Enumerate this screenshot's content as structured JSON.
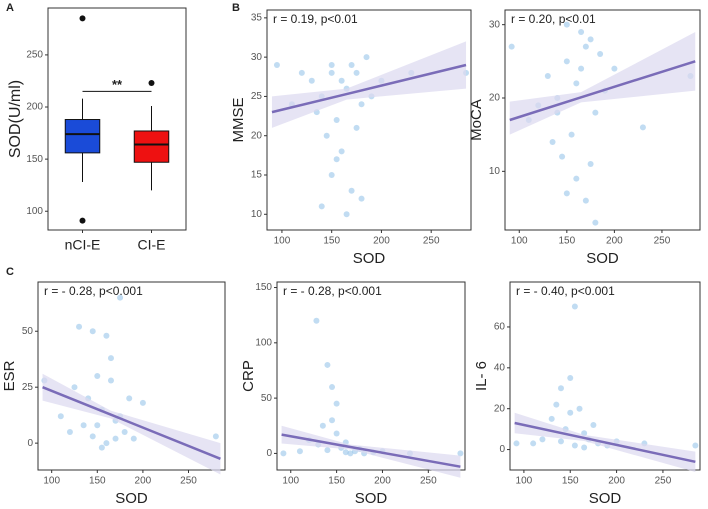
{
  "panel_labels": [
    "A",
    "B",
    "C"
  ],
  "chart_data": [
    {
      "type": "box",
      "ylabel": "SOD(U/ml)",
      "categories": [
        "nCI-E",
        "CI-E"
      ],
      "colors": [
        "#1a4bd8",
        "#ee1111"
      ],
      "boxes": [
        {
          "whisker_low": 128,
          "q1": 156,
          "median": 174,
          "q3": 188,
          "whisker_high": 208,
          "outliers": [
            285,
            91
          ]
        },
        {
          "whisker_low": 120,
          "q1": 147,
          "median": 164,
          "q3": 177,
          "whisker_high": 201,
          "outliers": [
            223
          ]
        }
      ],
      "ylim": [
        82,
        295
      ],
      "yticks": [
        100,
        150,
        200,
        250
      ],
      "annotation": "**",
      "annotation_y": 215
    },
    {
      "type": "scatter",
      "annotation": "r = 0.19, p<0.01",
      "xlabel": "SOD",
      "ylabel": "MMSE",
      "xlim": [
        85,
        290
      ],
      "xticks": [
        100,
        150,
        200,
        250
      ],
      "ylim": [
        8,
        36
      ],
      "yticks": [
        10,
        15,
        20,
        25,
        30,
        35
      ],
      "point_color": "#8ec0e8",
      "line_color": "#7a6cb8",
      "band_color": "#dcd9f0",
      "points": {
        "x": [
          150,
          160,
          170,
          140,
          180,
          155,
          165,
          130,
          175,
          190,
          145,
          160,
          150,
          170,
          180,
          140,
          200,
          120,
          110,
          230,
          285,
          95,
          165,
          150,
          185,
          135,
          175,
          155
        ],
        "y": [
          28,
          27,
          29,
          25,
          24,
          22,
          26,
          27,
          28,
          25,
          20,
          18,
          15,
          13,
          12,
          11,
          27,
          28,
          24,
          28,
          28,
          29,
          10,
          29,
          30,
          23,
          21,
          17
        ]
      },
      "fit": {
        "x": [
          90,
          165,
          285
        ],
        "y": [
          23,
          25.3,
          29
        ],
        "ci_low": [
          21,
          24.6,
          26
        ],
        "ci_high": [
          25,
          26,
          32
        ]
      }
    },
    {
      "type": "scatter",
      "annotation": "r = 0.20, p<0.01",
      "xlabel": "SOD",
      "ylabel": "MoCA",
      "xlim": [
        85,
        290
      ],
      "xticks": [
        100,
        150,
        200,
        250
      ],
      "ylim": [
        2,
        32
      ],
      "yticks": [
        10,
        20,
        30
      ],
      "point_color": "#8ec0e8",
      "line_color": "#7a6cb8",
      "band_color": "#dcd9f0",
      "points": {
        "x": [
          150,
          160,
          170,
          140,
          180,
          155,
          165,
          130,
          175,
          190,
          145,
          160,
          150,
          170,
          180,
          140,
          200,
          120,
          110,
          230,
          280,
          92,
          165,
          150,
          185,
          135,
          175
        ],
        "y": [
          25,
          22,
          27,
          20,
          18,
          15,
          24,
          23,
          28,
          21,
          12,
          9,
          7,
          6,
          3,
          18,
          24,
          19,
          17,
          16,
          23,
          27,
          29,
          30,
          26,
          14,
          11
        ]
      },
      "fit": {
        "x": [
          90,
          165,
          285
        ],
        "y": [
          17,
          20.1,
          25
        ],
        "ci_low": [
          15,
          19.4,
          21
        ],
        "ci_high": [
          19.5,
          20.8,
          29
        ]
      }
    },
    {
      "type": "scatter",
      "annotation": "r = - 0.28, p<0.001",
      "xlabel": "SOD",
      "ylabel": "ESR",
      "xlim": [
        85,
        290
      ],
      "xticks": [
        100,
        150,
        200,
        250
      ],
      "ylim": [
        -12,
        72
      ],
      "yticks": [
        0,
        25,
        50
      ],
      "point_color": "#8ec0e8",
      "line_color": "#7a6cb8",
      "band_color": "#dcd9f0",
      "points": {
        "x": [
          130,
          145,
          160,
          175,
          150,
          165,
          140,
          155,
          170,
          180,
          190,
          135,
          145,
          160,
          175,
          200,
          125,
          110,
          120,
          155,
          185,
          280,
          92,
          165,
          150,
          170
        ],
        "y": [
          52,
          50,
          48,
          65,
          30,
          28,
          20,
          15,
          10,
          5,
          2,
          8,
          3,
          0,
          12,
          18,
          25,
          12,
          5,
          -2,
          20,
          3,
          28,
          38,
          8,
          2
        ]
      },
      "fit": {
        "x": [
          90,
          165,
          285
        ],
        "y": [
          25,
          12.7,
          -7
        ],
        "ci_low": [
          19,
          11,
          -14
        ],
        "ci_high": [
          31,
          14.5,
          0
        ]
      }
    },
    {
      "type": "scatter",
      "annotation": "r = - 0.28, p<0.001",
      "xlabel": "SOD",
      "ylabel": "CRP",
      "xlim": [
        85,
        290
      ],
      "xticks": [
        100,
        150,
        200,
        250
      ],
      "ylim": [
        -15,
        155
      ],
      "yticks": [
        0,
        50,
        100,
        150
      ],
      "point_color": "#8ec0e8",
      "line_color": "#7a6cb8",
      "band_color": "#dcd9f0",
      "points": {
        "x": [
          128,
          140,
          145,
          150,
          135,
          160,
          155,
          170,
          180,
          190,
          140,
          130,
          165,
          200,
          120,
          110,
          150,
          175,
          230,
          285,
          92,
          145,
          160
        ],
        "y": [
          120,
          80,
          60,
          45,
          25,
          10,
          5,
          2,
          0,
          1,
          3,
          8,
          0,
          2,
          12,
          2,
          18,
          4,
          0,
          0,
          0,
          30,
          1
        ]
      },
      "fit": {
        "x": [
          90,
          165,
          285
        ],
        "y": [
          17,
          5.8,
          -12
        ],
        "ci_low": [
          9,
          3.5,
          -22
        ],
        "ci_high": [
          25,
          8,
          -2
        ]
      }
    },
    {
      "type": "scatter",
      "annotation": "r = - 0.40, p<0.001",
      "xlabel": "SOD",
      "ylabel": "IL- 6",
      "xlim": [
        85,
        290
      ],
      "xticks": [
        100,
        150,
        200,
        250
      ],
      "ylim": [
        -10,
        82
      ],
      "yticks": [
        0,
        20,
        40,
        60
      ],
      "point_color": "#8ec0e8",
      "line_color": "#7a6cb8",
      "band_color": "#dcd9f0",
      "points": {
        "x": [
          155,
          150,
          140,
          160,
          130,
          145,
          165,
          170,
          180,
          190,
          200,
          135,
          155,
          120,
          110,
          175,
          150,
          230,
          285,
          92,
          165,
          140
        ],
        "y": [
          70,
          35,
          30,
          20,
          15,
          10,
          8,
          5,
          3,
          2,
          4,
          22,
          2,
          5,
          3,
          12,
          18,
          3,
          2,
          3,
          1,
          4
        ]
      },
      "fit": {
        "x": [
          90,
          165,
          285
        ],
        "y": [
          13,
          5.7,
          -6
        ],
        "ci_low": [
          8,
          4.2,
          -11
        ],
        "ci_high": [
          18,
          7.2,
          -1
        ]
      }
    }
  ]
}
